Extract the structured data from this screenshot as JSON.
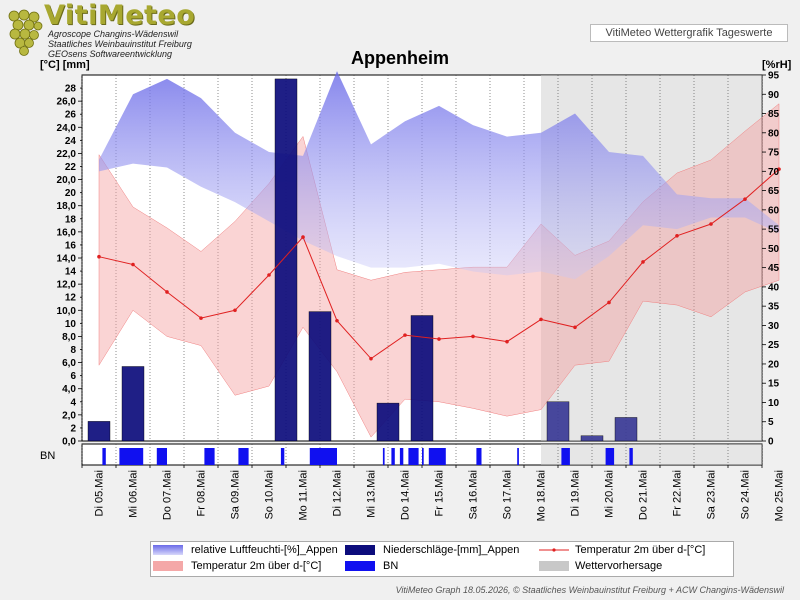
{
  "app": {
    "logo_title": "VitiMeteo",
    "logo_sub1": "Agroscope Changins-Wädenswil",
    "logo_sub2": "Staatliches Weinbauinstitut Freiburg",
    "logo_sub3": "GEOsens Softwareentwicklung",
    "header_box": "VitiMeteo Wettergrafik Tageswerte",
    "station": "Appenheim",
    "footer": "VitiMeteo Graph 18.05.2026, © Staatliches Weinbauinstitut Freiburg + ACW Changins-Wädenswil"
  },
  "legend": {
    "humidity": "relative Luftfeuchti-[%]_Appen",
    "precip": "Niederschläge-[mm]_Appen",
    "temp_line": "Temperatur 2m über d-[°C]",
    "temp_band": "Temperatur 2m über d-[°C]",
    "bn": "BN",
    "forecast": "Wettervorhersage"
  },
  "colors": {
    "humidity": "#7878e8",
    "precip": "#0c0c7c",
    "temp_line": "#e02020",
    "temp_band": "#f4a0a0",
    "bn": "#1010f0",
    "forecast": "#c8c8c8"
  },
  "chart_data": {
    "type": "line",
    "title": "Appenheim",
    "ylabel_left": "[°C] [mm]",
    "ylabel_right": "[%rH]",
    "ylim_left": [
      0,
      28
    ],
    "ylim_right": [
      0,
      95
    ],
    "left_ticks": [
      "0,0",
      "2",
      "2,0",
      "4",
      "4,0",
      "6",
      "6,0",
      "8",
      "8,0",
      "10",
      "10,0",
      "12",
      "12,0",
      "14",
      "14,0",
      "16",
      "16,0",
      "18",
      "18,0",
      "20",
      "20,0",
      "22",
      "22,0",
      "24",
      "24,0",
      "26",
      "26,0",
      "28"
    ],
    "right_ticks": [
      "0",
      "5",
      "10",
      "15",
      "20",
      "25",
      "30",
      "35",
      "40",
      "45",
      "50",
      "55",
      "60",
      "65",
      "70",
      "75",
      "80",
      "85",
      "90",
      "95"
    ],
    "x_labels": [
      "Di 05.Mai",
      "Mi 06.Mai",
      "Do 07.Mai",
      "Fr 08.Mai",
      "Sa 09.Mai",
      "So 10.Mai",
      "Mo 11.Mai",
      "Di 12.Mai",
      "Mi 13.Mai",
      "Do 14.Mai",
      "Fr 15.Mai",
      "Sa 16.Mai",
      "So 17.Mai",
      "Mo 18.Mai",
      "Di 19.Mai",
      "Mi 20.Mai",
      "Do 21.Mai",
      "Fr 22.Mai",
      "Sa 23.Mai",
      "So 24.Mai",
      "Mo 25.Mai"
    ],
    "forecast_start_day": 13.5,
    "humidity_max": [
      73,
      90,
      94,
      89,
      80,
      75,
      74,
      96,
      77,
      83,
      87,
      82,
      79,
      80,
      85,
      75,
      74,
      64,
      63,
      63,
      56
    ],
    "humidity_min": [
      70,
      72,
      71,
      66,
      62,
      57,
      52,
      48,
      45,
      45,
      46,
      44,
      43,
      44,
      42,
      48,
      56,
      55,
      58,
      58,
      54
    ],
    "temp_max": [
      21.9,
      17.9,
      16.3,
      14.5,
      16.8,
      19.7,
      23.3,
      13.1,
      12.3,
      12.9,
      13.1,
      13.3,
      13.3,
      16.6,
      14.2,
      15.3,
      18.3,
      20.5,
      21.5,
      23.7,
      25.8
    ],
    "temp_min": [
      5.8,
      10.0,
      8.0,
      7.3,
      3.5,
      4.2,
      8.7,
      5.3,
      0.3,
      3.2,
      3.0,
      2.5,
      1.9,
      2.4,
      5.8,
      6.1,
      10.7,
      10.4,
      9.5,
      11.4,
      12.3
    ],
    "temp_mean": [
      14.1,
      13.5,
      11.4,
      9.4,
      10.0,
      12.7,
      15.6,
      9.2,
      6.3,
      8.1,
      7.8,
      8.0,
      7.6,
      9.3,
      8.7,
      10.6,
      13.7,
      15.7,
      16.6,
      18.5,
      20.8
    ],
    "precip": [
      {
        "day": 0.5,
        "value": 1.5
      },
      {
        "day": 1.5,
        "value": 5.7
      },
      {
        "day": 6.0,
        "value": 27.7
      },
      {
        "day": 7.0,
        "value": 9.9
      },
      {
        "day": 9.0,
        "value": 2.9
      },
      {
        "day": 10.0,
        "value": 9.6
      },
      {
        "day": 14.0,
        "value": 3.0
      },
      {
        "day": 15.0,
        "value": 0.4
      },
      {
        "day": 16.0,
        "value": 1.8
      }
    ],
    "bn": [
      [
        0.6,
        0.7
      ],
      [
        1.1,
        1.8
      ],
      [
        2.2,
        2.5
      ],
      [
        3.6,
        3.9
      ],
      [
        4.6,
        4.9
      ],
      [
        5.85,
        5.95
      ],
      [
        6.7,
        7.5
      ],
      [
        8.85,
        8.9
      ],
      [
        9.1,
        9.2
      ],
      [
        9.35,
        9.45
      ],
      [
        9.6,
        9.9
      ],
      [
        10.0,
        10.05
      ],
      [
        10.2,
        10.7
      ],
      [
        11.6,
        11.75
      ],
      [
        12.8,
        12.85
      ],
      [
        14.1,
        14.35
      ],
      [
        15.4,
        15.65
      ],
      [
        16.1,
        16.2
      ]
    ]
  }
}
